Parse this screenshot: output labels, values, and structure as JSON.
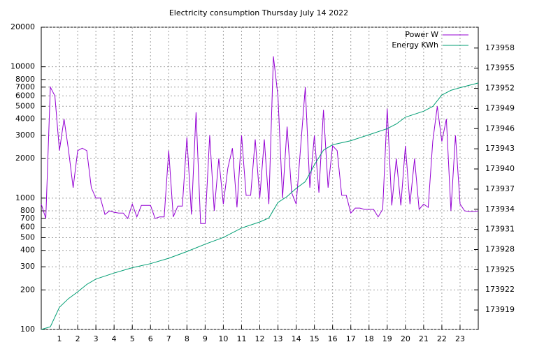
{
  "chart_data": {
    "type": "line",
    "title": "Electricity consumption Thursday July 14 2022",
    "xlim": [
      0,
      24
    ],
    "xticks": [
      1,
      2,
      3,
      4,
      5,
      6,
      7,
      8,
      9,
      10,
      11,
      12,
      13,
      14,
      15,
      16,
      17,
      18,
      19,
      20,
      21,
      22,
      23
    ],
    "ylim": [
      100,
      20000
    ],
    "ylog": true,
    "yticks": [
      100,
      200,
      300,
      400,
      500,
      600,
      700,
      800,
      1000,
      2000,
      3000,
      4000,
      5000,
      6000,
      7000,
      8000,
      10000,
      20000
    ],
    "y2lim": [
      173916.1,
      173961.1
    ],
    "y2ticks": [
      173919,
      173922,
      173925,
      173928,
      173931,
      173934,
      173937,
      173940,
      173943,
      173946,
      173949,
      173952,
      173955,
      173958
    ],
    "grid": true,
    "legend": "top-right",
    "x": [
      0,
      0.25,
      0.5,
      0.75,
      1,
      1.25,
      1.5,
      1.75,
      2,
      2.25,
      2.5,
      2.75,
      3,
      3.25,
      3.5,
      3.75,
      4,
      4.25,
      4.5,
      4.75,
      5,
      5.25,
      5.5,
      5.75,
      6,
      6.25,
      6.5,
      6.75,
      7,
      7.25,
      7.5,
      7.75,
      8,
      8.25,
      8.5,
      8.75,
      9,
      9.25,
      9.5,
      9.75,
      10,
      10.25,
      10.5,
      10.75,
      11,
      11.25,
      11.5,
      11.75,
      12,
      12.25,
      12.5,
      12.75,
      13,
      13.25,
      13.5,
      13.75,
      14,
      14.25,
      14.5,
      14.75,
      15,
      15.25,
      15.5,
      15.75,
      16,
      16.25,
      16.5,
      16.75,
      17,
      17.25,
      17.5,
      17.75,
      18,
      18.25,
      18.5,
      18.75,
      19,
      19.25,
      19.5,
      19.75,
      20,
      20.25,
      20.5,
      20.75,
      21,
      21.25,
      21.5,
      21.75,
      22,
      22.25,
      22.5,
      22.75,
      23,
      23.25,
      23.5,
      23.75,
      24
    ],
    "series": [
      {
        "name": "Power W",
        "color": "#9400d3",
        "values": [
          900,
          700,
          7000,
          6000,
          2300,
          4000,
          2300,
          1200,
          2300,
          2400,
          2300,
          1200,
          1000,
          1000,
          750,
          800,
          780,
          770,
          770,
          700,
          900,
          720,
          880,
          880,
          880,
          700,
          720,
          720,
          2300,
          720,
          870,
          870,
          2900,
          750,
          4500,
          640,
          640,
          3000,
          800,
          2000,
          900,
          1700,
          2400,
          850,
          3000,
          1050,
          1050,
          2800,
          1000,
          2800,
          900,
          12000,
          6000,
          1000,
          3500,
          1100,
          900,
          2500,
          7000,
          1200,
          3000,
          1100,
          4700,
          1200,
          2500,
          2300,
          1050,
          1050,
          770,
          840,
          840,
          820,
          820,
          820,
          720,
          820,
          4800,
          880,
          2000,
          880,
          2500,
          900,
          2000,
          820,
          900,
          850,
          2700,
          5000,
          2700,
          4000,
          800,
          3000,
          900,
          800,
          790,
          790,
          800
        ]
      },
      {
        "name": "Energy KWh",
        "color": "#009e73",
        "axis": "y2",
        "x": [
          0,
          0.5,
          1,
          1.5,
          2,
          2.5,
          3,
          4,
          5,
          6,
          7,
          8,
          9,
          10,
          11,
          12,
          12.5,
          13,
          13.5,
          14,
          14.5,
          15,
          15.5,
          16,
          17,
          18,
          19,
          19.5,
          20,
          21,
          21.5,
          22,
          22.5,
          23,
          24
        ],
        "values": [
          173916.1,
          173916.5,
          173919.4,
          173920.7,
          173921.7,
          173922.8,
          173923.6,
          173924.5,
          173925.3,
          173925.9,
          173926.7,
          173927.7,
          173928.8,
          173929.8,
          173931.2,
          173932.1,
          173932.7,
          173935.0,
          173935.9,
          173937.1,
          173938.1,
          173940.6,
          173942.8,
          173943.6,
          173944.2,
          173945.1,
          173946.0,
          173946.7,
          173947.7,
          173948.6,
          173949.3,
          173951.0,
          173951.7,
          173952.1,
          173952.8
        ]
      }
    ]
  }
}
